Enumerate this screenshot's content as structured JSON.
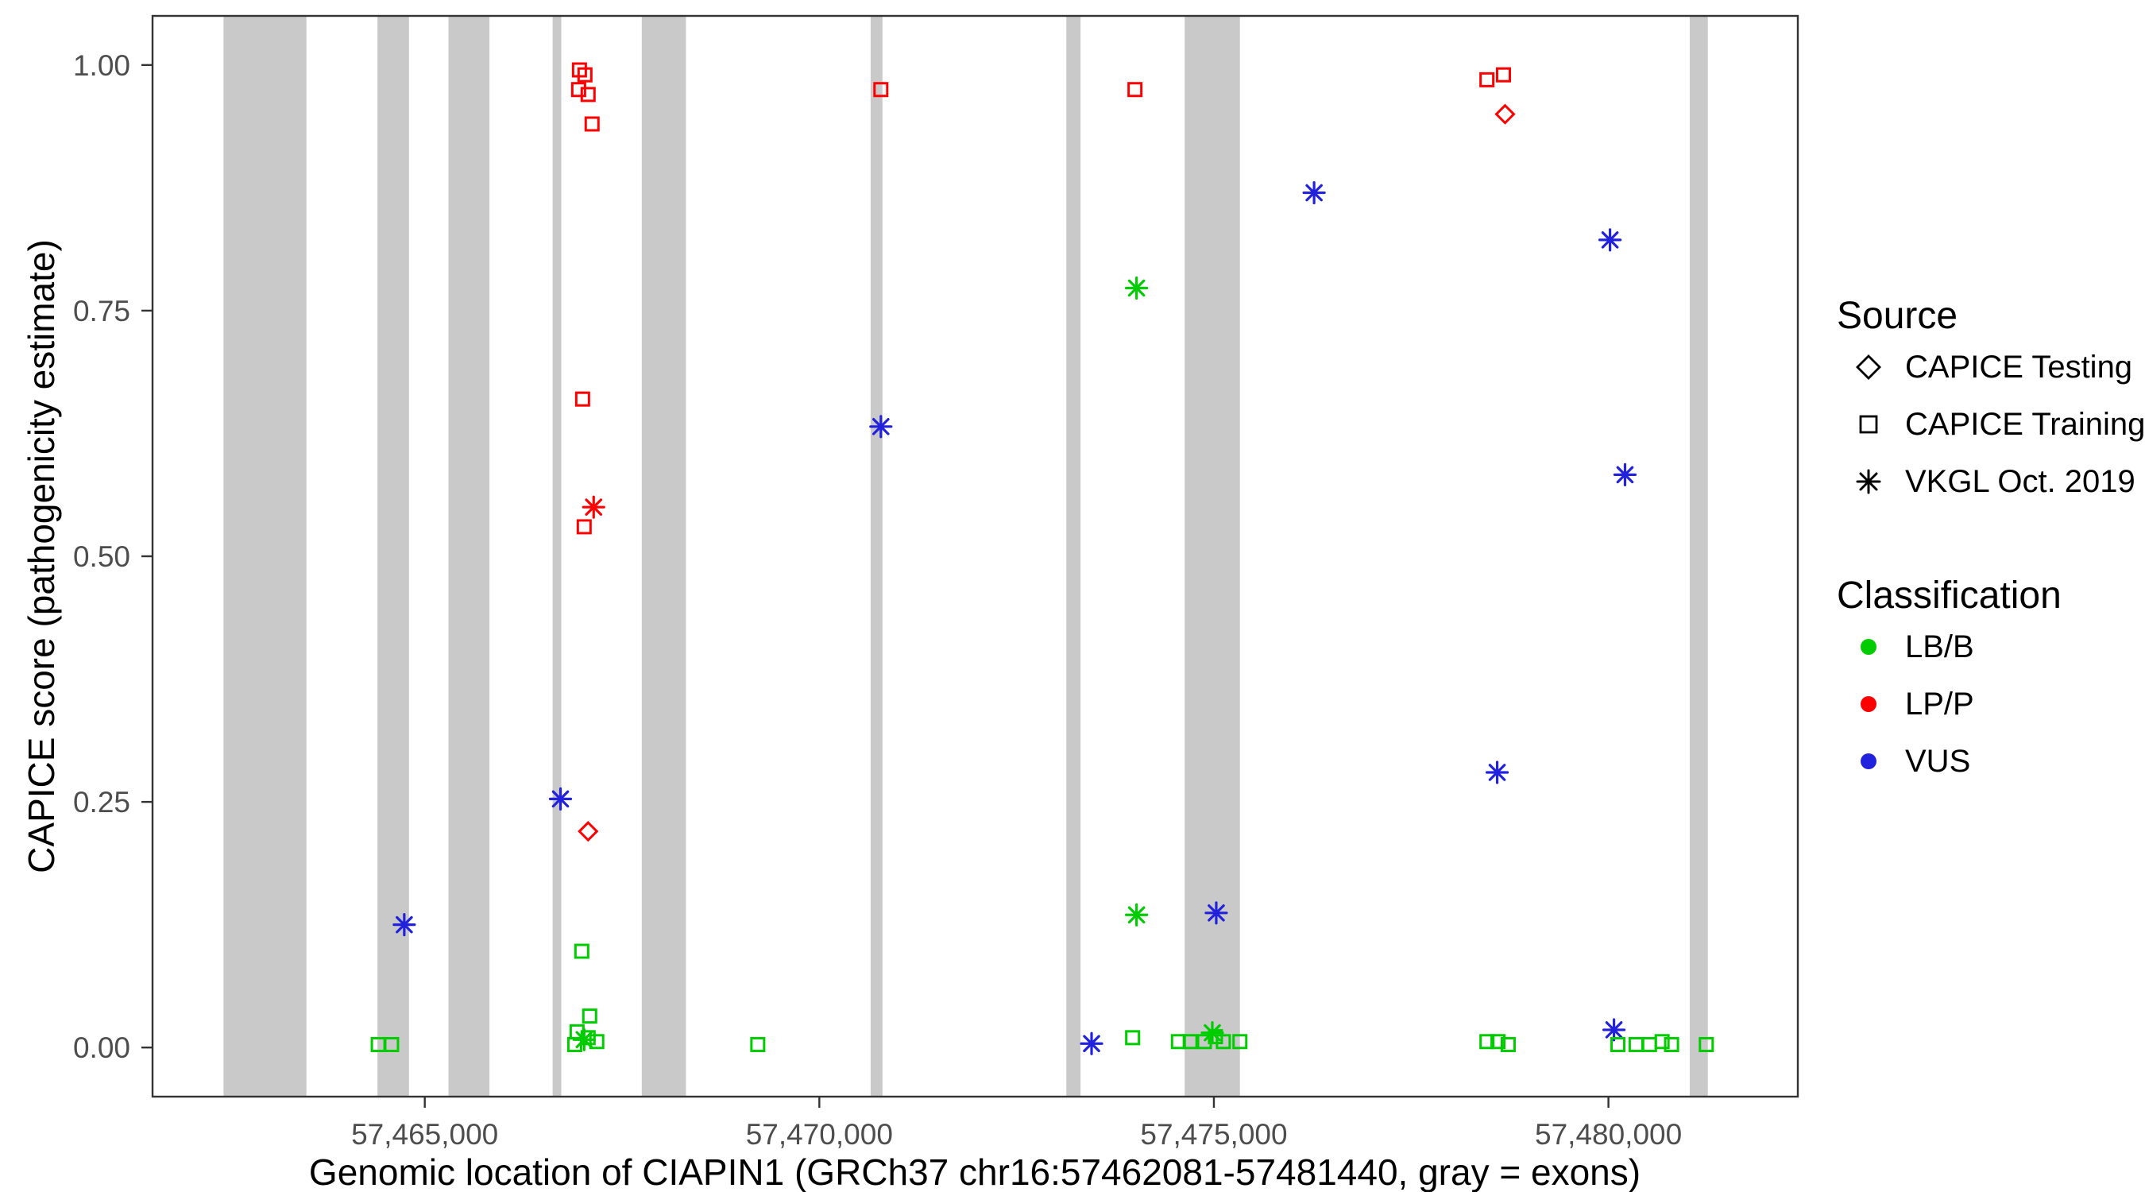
{
  "axes": {
    "x_title": "Genomic location of CIAPIN1 (GRCh37 chr16:57462081-57481440, gray = exons)",
    "y_title": "CAPICE score (pathogenicity estimate)"
  },
  "legend": {
    "source": {
      "title": "Source",
      "items": [
        {
          "label": "CAPICE Testing",
          "shape": "diamond"
        },
        {
          "label": "CAPICE Training",
          "shape": "square"
        },
        {
          "label": "VKGL Oct. 2019",
          "shape": "asterisk"
        }
      ]
    },
    "classification": {
      "title": "Classification",
      "items": [
        {
          "label": "LB/B",
          "color": "#00CC00"
        },
        {
          "label": "LP/P",
          "color": "#FF0000"
        },
        {
          "label": "VUS",
          "color": "#2222DD"
        }
      ]
    }
  },
  "chart_data": {
    "type": "scatter",
    "title": "",
    "xlabel": "Genomic location of CIAPIN1 (GRCh37 chr16:57462081-57481440, gray = exons)",
    "ylabel": "CAPICE score (pathogenicity estimate)",
    "xlim": [
      57461550,
      57482400
    ],
    "ylim": [
      -0.05,
      1.05
    ],
    "grid": false,
    "legend_position": "right",
    "x_ticks": [
      {
        "value": 57465000,
        "label": "57,465,000"
      },
      {
        "value": 57470000,
        "label": "57,470,000"
      },
      {
        "value": 57475000,
        "label": "57,475,000"
      },
      {
        "value": 57480000,
        "label": "57,480,000"
      }
    ],
    "y_ticks": [
      {
        "value": 0.0,
        "label": "0.00"
      },
      {
        "value": 0.25,
        "label": "0.25"
      },
      {
        "value": 0.5,
        "label": "0.50"
      },
      {
        "value": 0.75,
        "label": "0.75"
      },
      {
        "value": 1.0,
        "label": "1.00"
      }
    ],
    "exon_color": "#C9C9C9",
    "exon_bands": [
      [
        57462450,
        57463500
      ],
      [
        57464400,
        57464800
      ],
      [
        57465300,
        57465820
      ],
      [
        57466620,
        57466730
      ],
      [
        57467750,
        57468310
      ],
      [
        57470650,
        57470800
      ],
      [
        57473130,
        57473310
      ],
      [
        57474630,
        57475330
      ],
      [
        57481030,
        57481260
      ]
    ],
    "class_colors": {
      "LB/B": "#00CC00",
      "LP/P": "#FF0000",
      "VUS": "#2222DD"
    },
    "source_shapes": {
      "CAPICE Testing": "diamond",
      "CAPICE Training": "square",
      "VKGL Oct. 2019": "asterisk"
    },
    "points": [
      {
        "x": 57466960,
        "y": 0.995,
        "classification": "LP/P",
        "source": "CAPICE Training"
      },
      {
        "x": 57467030,
        "y": 0.99,
        "classification": "LP/P",
        "source": "CAPICE Training"
      },
      {
        "x": 57466950,
        "y": 0.975,
        "classification": "LP/P",
        "source": "CAPICE Training"
      },
      {
        "x": 57467070,
        "y": 0.97,
        "classification": "LP/P",
        "source": "CAPICE Training"
      },
      {
        "x": 57467120,
        "y": 0.94,
        "classification": "LP/P",
        "source": "CAPICE Training"
      },
      {
        "x": 57467000,
        "y": 0.66,
        "classification": "LP/P",
        "source": "CAPICE Training"
      },
      {
        "x": 57467020,
        "y": 0.53,
        "classification": "LP/P",
        "source": "CAPICE Training"
      },
      {
        "x": 57467140,
        "y": 0.55,
        "classification": "LP/P",
        "source": "VKGL Oct. 2019"
      },
      {
        "x": 57467070,
        "y": 0.22,
        "classification": "LP/P",
        "source": "CAPICE Testing"
      },
      {
        "x": 57470780,
        "y": 0.975,
        "classification": "LP/P",
        "source": "CAPICE Training"
      },
      {
        "x": 57474000,
        "y": 0.975,
        "classification": "LP/P",
        "source": "CAPICE Training"
      },
      {
        "x": 57478460,
        "y": 0.985,
        "classification": "LP/P",
        "source": "CAPICE Training"
      },
      {
        "x": 57478670,
        "y": 0.99,
        "classification": "LP/P",
        "source": "CAPICE Training"
      },
      {
        "x": 57478690,
        "y": 0.95,
        "classification": "LP/P",
        "source": "CAPICE Testing"
      },
      {
        "x": 57464740,
        "y": 0.125,
        "classification": "VUS",
        "source": "VKGL Oct. 2019"
      },
      {
        "x": 57466720,
        "y": 0.253,
        "classification": "VUS",
        "source": "VKGL Oct. 2019"
      },
      {
        "x": 57470780,
        "y": 0.632,
        "classification": "VUS",
        "source": "VKGL Oct. 2019"
      },
      {
        "x": 57473450,
        "y": 0.004,
        "classification": "VUS",
        "source": "VKGL Oct. 2019"
      },
      {
        "x": 57475030,
        "y": 0.137,
        "classification": "VUS",
        "source": "VKGL Oct. 2019"
      },
      {
        "x": 57476270,
        "y": 0.87,
        "classification": "VUS",
        "source": "VKGL Oct. 2019"
      },
      {
        "x": 57478590,
        "y": 0.28,
        "classification": "VUS",
        "source": "VKGL Oct. 2019"
      },
      {
        "x": 57480020,
        "y": 0.822,
        "classification": "VUS",
        "source": "VKGL Oct. 2019"
      },
      {
        "x": 57480210,
        "y": 0.583,
        "classification": "VUS",
        "source": "VKGL Oct. 2019"
      },
      {
        "x": 57480070,
        "y": 0.018,
        "classification": "VUS",
        "source": "VKGL Oct. 2019"
      },
      {
        "x": 57474020,
        "y": 0.773,
        "classification": "LB/B",
        "source": "VKGL Oct. 2019"
      },
      {
        "x": 57474020,
        "y": 0.135,
        "classification": "LB/B",
        "source": "VKGL Oct. 2019"
      },
      {
        "x": 57474980,
        "y": 0.015,
        "classification": "LB/B",
        "source": "VKGL Oct. 2019"
      },
      {
        "x": 57467020,
        "y": 0.008,
        "classification": "LB/B",
        "source": "VKGL Oct. 2019"
      },
      {
        "x": 57464410,
        "y": 0.003,
        "classification": "LB/B",
        "source": "CAPICE Training"
      },
      {
        "x": 57464580,
        "y": 0.003,
        "classification": "LB/B",
        "source": "CAPICE Training"
      },
      {
        "x": 57466990,
        "y": 0.098,
        "classification": "LB/B",
        "source": "CAPICE Training"
      },
      {
        "x": 57467090,
        "y": 0.032,
        "classification": "LB/B",
        "source": "CAPICE Training"
      },
      {
        "x": 57466930,
        "y": 0.016,
        "classification": "LB/B",
        "source": "CAPICE Training"
      },
      {
        "x": 57467070,
        "y": 0.01,
        "classification": "LB/B",
        "source": "CAPICE Training"
      },
      {
        "x": 57466900,
        "y": 0.003,
        "classification": "LB/B",
        "source": "CAPICE Training"
      },
      {
        "x": 57467180,
        "y": 0.006,
        "classification": "LB/B",
        "source": "CAPICE Training"
      },
      {
        "x": 57469220,
        "y": 0.003,
        "classification": "LB/B",
        "source": "CAPICE Training"
      },
      {
        "x": 57473970,
        "y": 0.01,
        "classification": "LB/B",
        "source": "CAPICE Training"
      },
      {
        "x": 57474550,
        "y": 0.006,
        "classification": "LB/B",
        "source": "CAPICE Training"
      },
      {
        "x": 57474700,
        "y": 0.006,
        "classification": "LB/B",
        "source": "CAPICE Training"
      },
      {
        "x": 57474880,
        "y": 0.006,
        "classification": "LB/B",
        "source": "CAPICE Training"
      },
      {
        "x": 57475020,
        "y": 0.011,
        "classification": "LB/B",
        "source": "CAPICE Training"
      },
      {
        "x": 57475120,
        "y": 0.006,
        "classification": "LB/B",
        "source": "CAPICE Training"
      },
      {
        "x": 57475330,
        "y": 0.006,
        "classification": "LB/B",
        "source": "CAPICE Training"
      },
      {
        "x": 57478460,
        "y": 0.006,
        "classification": "LB/B",
        "source": "CAPICE Training"
      },
      {
        "x": 57478600,
        "y": 0.006,
        "classification": "LB/B",
        "source": "CAPICE Training"
      },
      {
        "x": 57478730,
        "y": 0.003,
        "classification": "LB/B",
        "source": "CAPICE Training"
      },
      {
        "x": 57480120,
        "y": 0.003,
        "classification": "LB/B",
        "source": "CAPICE Training"
      },
      {
        "x": 57480350,
        "y": 0.003,
        "classification": "LB/B",
        "source": "CAPICE Training"
      },
      {
        "x": 57480520,
        "y": 0.003,
        "classification": "LB/B",
        "source": "CAPICE Training"
      },
      {
        "x": 57480680,
        "y": 0.006,
        "classification": "LB/B",
        "source": "CAPICE Training"
      },
      {
        "x": 57480800,
        "y": 0.003,
        "classification": "LB/B",
        "source": "CAPICE Training"
      },
      {
        "x": 57481240,
        "y": 0.003,
        "classification": "LB/B",
        "source": "CAPICE Training"
      }
    ]
  }
}
